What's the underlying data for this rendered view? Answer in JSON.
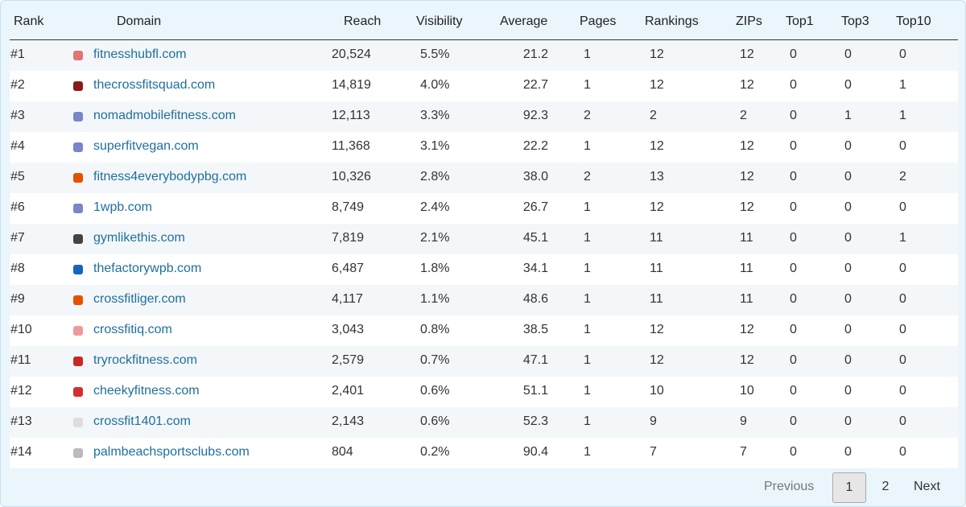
{
  "table": {
    "header": [
      "Rank",
      "Domain",
      "Reach",
      "Visibility",
      "Average",
      "Pages",
      "Rankings",
      "ZIPs",
      "Top1",
      "Top3",
      "Top10"
    ],
    "rows": [
      [
        "#1",
        "fitnesshubfl.com",
        "20,524",
        "5.5%",
        "21.2",
        "1",
        "12",
        "12",
        "0",
        "0",
        "0"
      ],
      [
        "#2",
        "thecrossfitsquad.com",
        "14,819",
        "4.0%",
        "22.7",
        "1",
        "12",
        "12",
        "0",
        "0",
        "1"
      ],
      [
        "#3",
        "nomadmobilefitness.com",
        "12,113",
        "3.3%",
        "92.3",
        "2",
        "2",
        "2",
        "0",
        "1",
        "1"
      ],
      [
        "#4",
        "superfitvegan.com",
        "11,368",
        "3.1%",
        "22.2",
        "1",
        "12",
        "12",
        "0",
        "0",
        "0"
      ],
      [
        "#5",
        "fitness4everybodypbg.com",
        "10,326",
        "2.8%",
        "38.0",
        "2",
        "13",
        "12",
        "0",
        "0",
        "2"
      ],
      [
        "#6",
        "1wpb.com",
        "8,749",
        "2.4%",
        "26.7",
        "1",
        "12",
        "12",
        "0",
        "0",
        "0"
      ],
      [
        "#7",
        "gymlikethis.com",
        "7,819",
        "2.1%",
        "45.1",
        "1",
        "11",
        "11",
        "0",
        "0",
        "1"
      ],
      [
        "#8",
        "thefactorywpb.com",
        "6,487",
        "1.8%",
        "34.1",
        "1",
        "11",
        "11",
        "0",
        "0",
        "0"
      ],
      [
        "#9",
        "crossfitliger.com",
        "4,117",
        "1.1%",
        "48.6",
        "1",
        "11",
        "11",
        "0",
        "0",
        "0"
      ],
      [
        "#10",
        "crossfitiq.com",
        "3,043",
        "0.8%",
        "38.5",
        "1",
        "12",
        "12",
        "0",
        "0",
        "0"
      ],
      [
        "#11",
        "tryrockfitness.com",
        "2,579",
        "0.7%",
        "47.1",
        "1",
        "12",
        "12",
        "0",
        "0",
        "0"
      ],
      [
        "#12",
        "cheekyfitness.com",
        "2,401",
        "0.6%",
        "51.1",
        "1",
        "10",
        "10",
        "0",
        "0",
        "0"
      ],
      [
        "#13",
        "crossfit1401.com",
        "2,143",
        "0.6%",
        "52.3",
        "1",
        "9",
        "9",
        "0",
        "0",
        "0"
      ],
      [
        "#14",
        "palmbeachsportsclubs.com",
        "804",
        "0.2%",
        "90.4",
        "1",
        "7",
        "7",
        "0",
        "0",
        "0"
      ]
    ]
  },
  "pagination": {
    "previous": "Previous",
    "pages": [
      "1",
      "2"
    ],
    "next": "Next"
  }
}
